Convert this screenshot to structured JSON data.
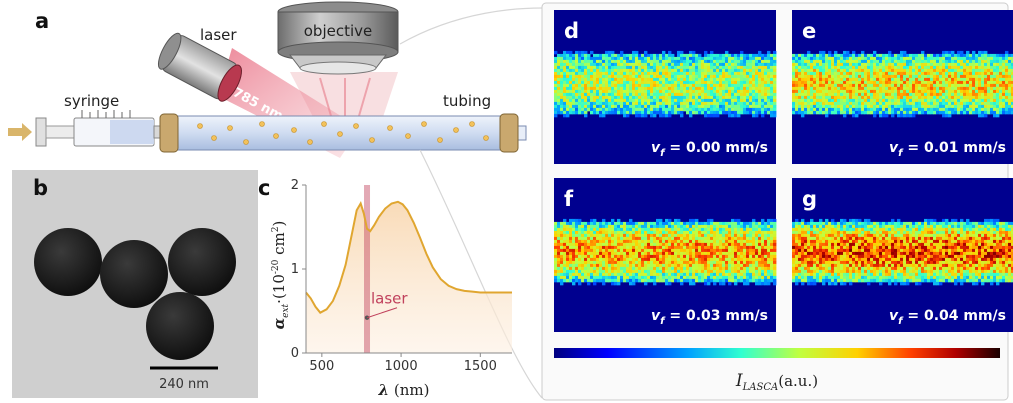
{
  "panel_labels": {
    "a": "a",
    "b": "b",
    "c": "c",
    "d": "d",
    "e": "e",
    "f": "f",
    "g": "g"
  },
  "setup": {
    "objective": "objective",
    "laser": "laser",
    "wavelength": "785 nm",
    "syringe": "syringe",
    "tubing": "tubing"
  },
  "micrograph": {
    "scale_bar": "240 nm"
  },
  "chart_data": {
    "type": "line",
    "title": "",
    "xlabel": "λ (nm)",
    "ylabel": "α_ext ·(10^-20 cm^2)",
    "xlim": [
      400,
      1700
    ],
    "ylim": [
      0,
      2
    ],
    "xticks": [
      500,
      1000,
      1500
    ],
    "yticks": [
      0,
      1,
      2
    ],
    "x": [
      400,
      430,
      460,
      490,
      530,
      570,
      610,
      650,
      690,
      720,
      745,
      765,
      785,
      805,
      830,
      860,
      900,
      940,
      980,
      1010,
      1040,
      1080,
      1120,
      1160,
      1200,
      1250,
      1300,
      1350,
      1400,
      1450,
      1500,
      1550,
      1600,
      1650,
      1700
    ],
    "y": [
      0.72,
      0.65,
      0.55,
      0.48,
      0.52,
      0.62,
      0.8,
      1.05,
      1.42,
      1.7,
      1.78,
      1.66,
      1.48,
      1.45,
      1.52,
      1.62,
      1.72,
      1.78,
      1.8,
      1.77,
      1.7,
      1.55,
      1.37,
      1.18,
      1.02,
      0.88,
      0.8,
      0.76,
      0.74,
      0.73,
      0.72,
      0.72,
      0.72,
      0.72,
      0.72
    ],
    "laser_line_x": 785,
    "annotation": "laser",
    "line_color": "#e0a630",
    "laser_color": "#c0415c"
  },
  "lasca": {
    "panels": [
      {
        "label": "d",
        "vf": "v_f = 0.00 mm/s",
        "vf_text": "= 0.00 mm/s"
      },
      {
        "label": "e",
        "vf": "v_f = 0.01 mm/s",
        "vf_text": "= 0.01 mm/s"
      },
      {
        "label": "f",
        "vf": "v_f = 0.03 mm/s",
        "vf_text": "= 0.03 mm/s"
      },
      {
        "label": "g",
        "vf": "v_f = 0.04 mm/s",
        "vf_text": "= 0.04 mm/s"
      }
    ],
    "colorbar_label": "I_LASCA (a.u.)",
    "colorbar_unit": "(a.u.)"
  }
}
